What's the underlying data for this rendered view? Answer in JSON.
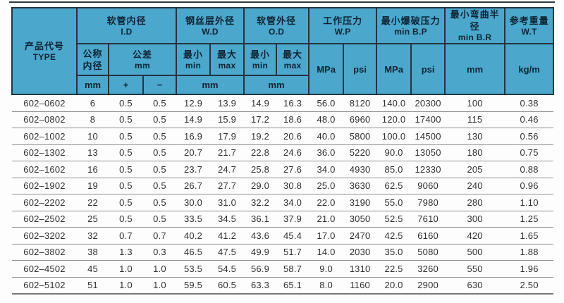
{
  "table": {
    "title_semantics": "hydraulic hose specification table",
    "header": {
      "type_zh": "产品代号",
      "type_en": "TYPE",
      "groups": {
        "id": {
          "zh": "软管内径",
          "en": "I.D"
        },
        "wd": {
          "zh": "钢丝层外径",
          "en": "W.D"
        },
        "od": {
          "zh": "软管外径",
          "en": "O.D"
        },
        "wp": {
          "zh": "工作压力",
          "en": "W.P"
        },
        "bp": {
          "zh": "最小爆破压力",
          "en": "min B.P"
        },
        "br": {
          "zh": "最小弯曲半径",
          "en": "min B.R"
        },
        "wt": {
          "zh": "参考重量",
          "en": "W.T"
        }
      },
      "sub": {
        "nominal_line1": "公称",
        "nominal_line2": "内径",
        "tolerance_line1": "公差",
        "tolerance_line2": "mm",
        "min_zh": "最小",
        "min_en": "min",
        "max_zh": "最大",
        "max_en": "max",
        "mpa": "MPa",
        "psi": "psi",
        "mm": "mm",
        "kgm": "kg/m"
      },
      "units": {
        "mm": "mm",
        "plus": "+",
        "minus": "−"
      }
    },
    "columns": [
      "type",
      "nominal_mm",
      "tol_plus",
      "tol_minus",
      "wd_min",
      "wd_max",
      "od_min",
      "od_max",
      "wp_mpa",
      "wp_psi",
      "bp_mpa",
      "bp_psi",
      "br_mm",
      "wt_kgm"
    ],
    "rows": [
      [
        "602–0602",
        "6",
        "0.5",
        "0.5",
        "12.9",
        "13.9",
        "14.9",
        "16.3",
        "56.0",
        "8120",
        "140.0",
        "20300",
        "100",
        "0.38"
      ],
      [
        "602–0802",
        "8",
        "0.5",
        "0.5",
        "14.9",
        "15.9",
        "17.2",
        "18.6",
        "48.0",
        "6960",
        "120.0",
        "17400",
        "115",
        "0.46"
      ],
      [
        "602–1002",
        "10",
        "0.5",
        "0.5",
        "16.9",
        "17.9",
        "19.2",
        "20.6",
        "40.0",
        "5800",
        "100.0",
        "14500",
        "130",
        "0.56"
      ],
      [
        "602–1302",
        "13",
        "0.5",
        "0.5",
        "20.7",
        "21.7",
        "22.8",
        "24.6",
        "36.0",
        "5220",
        "90.0",
        "13050",
        "180",
        "0.75"
      ],
      [
        "602–1602",
        "16",
        "0.5",
        "0.5",
        "23.7",
        "24.7",
        "25.8",
        "27.6",
        "34.0",
        "4930",
        "85.0",
        "12330",
        "205",
        "0.88"
      ],
      [
        "602–1902",
        "19",
        "0.5",
        "0.5",
        "26.7",
        "27.7",
        "29.0",
        "30.8",
        "25.0",
        "3630",
        "62.5",
        "9060",
        "240",
        "0.96"
      ],
      [
        "602–2202",
        "22",
        "0.5",
        "0.5",
        "30.0",
        "31.0",
        "32.2",
        "34.0",
        "22.0",
        "3190",
        "55.0",
        "7980",
        "280",
        "1.10"
      ],
      [
        "602–2502",
        "25",
        "0.5",
        "0.5",
        "33.5",
        "34.5",
        "36.1",
        "37.9",
        "21.0",
        "3050",
        "52.5",
        "7610",
        "300",
        "1.25"
      ],
      [
        "602–3202",
        "32",
        "0.7",
        "0.7",
        "40.2",
        "41.2",
        "43.6",
        "45.4",
        "17.0",
        "2470",
        "42.5",
        "6160",
        "420",
        "1.65"
      ],
      [
        "602–3802",
        "38",
        "1.3",
        "0.3",
        "46.5",
        "47.5",
        "49.9",
        "51.7",
        "14.0",
        "2030",
        "35.0",
        "5080",
        "500",
        "1.88"
      ],
      [
        "602–4502",
        "45",
        "1.0",
        "1.0",
        "53.5",
        "54.5",
        "56.9",
        "58.7",
        "9.0",
        "1310",
        "22.5",
        "3260",
        "550",
        "1.96"
      ],
      [
        "602–5102",
        "51",
        "1.0",
        "1.0",
        "59.5",
        "60.5",
        "63.3",
        "65.1",
        "8.0",
        "1160",
        "20.0",
        "2900",
        "630",
        "2.50"
      ]
    ]
  },
  "colors": {
    "header_bg": "#4CA7CD",
    "header_border": "#243540",
    "header_text": "#0D2433",
    "row_line": "#8E8E8E",
    "data_text": "#303030",
    "top_rule": "#34393D"
  }
}
